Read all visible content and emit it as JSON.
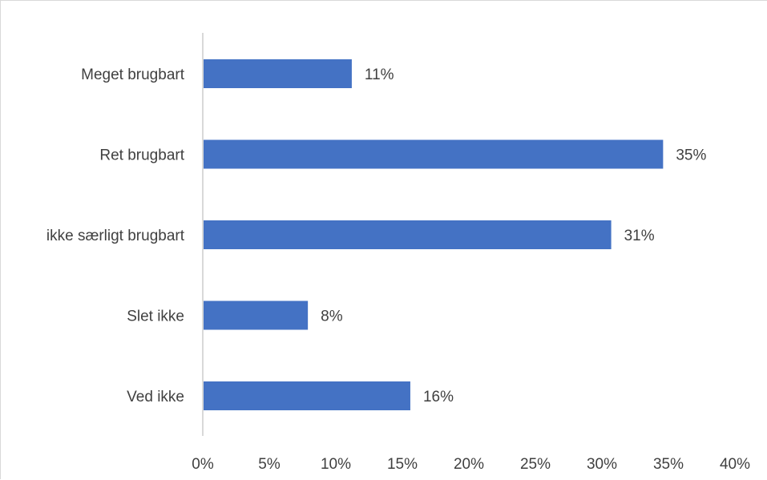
{
  "chart_data": {
    "type": "bar",
    "orientation": "horizontal",
    "categories": [
      "Meget brugbart",
      "Ret brugbart",
      "ikke særligt brugbart",
      "Slet ikke",
      "Ved ikke"
    ],
    "values": [
      11,
      35,
      31,
      8,
      16
    ],
    "value_labels": [
      "11%",
      "35%",
      "31%",
      "8%",
      "16%"
    ],
    "plot_values": [
      11.2,
      34.6,
      30.7,
      7.9,
      15.6
    ],
    "xlim": [
      0,
      40
    ],
    "xticks": [
      0,
      5,
      10,
      15,
      20,
      25,
      30,
      35,
      40
    ],
    "xtick_labels": [
      "0%",
      "5%",
      "10%",
      "15%",
      "20%",
      "25%",
      "30%",
      "35%",
      "40%"
    ],
    "title": "",
    "xlabel": "",
    "ylabel": "",
    "grid": false,
    "legend": "none",
    "bar_color": "#4472C4",
    "axis_color": "#d9d9d9",
    "text_color": "#404040"
  }
}
